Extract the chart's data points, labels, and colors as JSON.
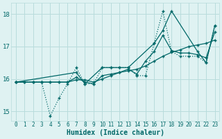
{
  "xlabel": "Humidex (Indice chaleur)",
  "bg_color": "#dff2f2",
  "line_color": "#006868",
  "grid_color": "#b8dcdc",
  "xlim": [
    -0.5,
    23.5
  ],
  "ylim": [
    14.7,
    18.35
  ],
  "yticks": [
    15,
    16,
    17,
    18
  ],
  "xticks": [
    0,
    1,
    2,
    3,
    4,
    5,
    6,
    7,
    8,
    9,
    10,
    11,
    12,
    13,
    14,
    15,
    16,
    17,
    18,
    19,
    20,
    21,
    22,
    23
  ],
  "s1_x": [
    0,
    1,
    2,
    3,
    4,
    5,
    6,
    7,
    8,
    9,
    10,
    11,
    12,
    13,
    14,
    15,
    16,
    17,
    18,
    19,
    20,
    21,
    22,
    23
  ],
  "s1_y": [
    15.9,
    15.9,
    15.9,
    15.9,
    14.85,
    15.4,
    15.85,
    16.35,
    15.85,
    15.85,
    16.35,
    16.35,
    16.35,
    16.35,
    16.1,
    16.1,
    17.1,
    18.1,
    16.85,
    16.7,
    16.7,
    16.7,
    16.5,
    17.65
  ],
  "s2_x": [
    0,
    1,
    2,
    3,
    4,
    5,
    6,
    7,
    8,
    9,
    10,
    11,
    12,
    13,
    14,
    15,
    16,
    17,
    18,
    19,
    20,
    21,
    22,
    23
  ],
  "s2_y": [
    15.9,
    15.9,
    15.9,
    15.9,
    15.9,
    15.9,
    15.9,
    15.97,
    15.97,
    15.9,
    16.0,
    16.1,
    16.2,
    16.25,
    16.3,
    16.4,
    16.55,
    16.7,
    16.82,
    16.9,
    17.0,
    17.05,
    17.1,
    17.2
  ],
  "s3_x": [
    0,
    7,
    8,
    10,
    11,
    12,
    13,
    16,
    17,
    18,
    21,
    22,
    23
  ],
  "s3_y": [
    15.9,
    16.2,
    15.85,
    16.35,
    16.35,
    16.35,
    16.35,
    17.1,
    17.5,
    18.1,
    16.85,
    16.5,
    17.65
  ],
  "s4_x": [
    0,
    1,
    2,
    3,
    4,
    5,
    6,
    7,
    8,
    9,
    10,
    11,
    12,
    13,
    14,
    15,
    16,
    17,
    18,
    19,
    20,
    21,
    22,
    23
  ],
  "s4_y": [
    15.9,
    15.9,
    15.9,
    15.9,
    15.9,
    15.9,
    15.9,
    16.05,
    15.9,
    15.85,
    16.1,
    16.15,
    16.2,
    16.3,
    16.15,
    16.55,
    16.85,
    17.35,
    16.88,
    16.8,
    16.8,
    16.75,
    16.65,
    17.45
  ]
}
